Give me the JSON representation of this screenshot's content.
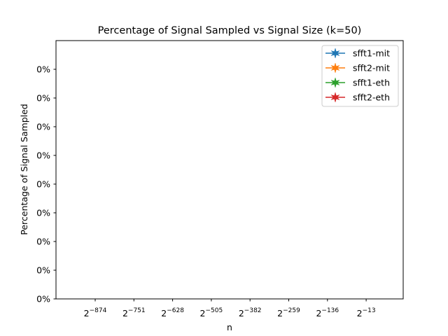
{
  "chart_data": {
    "type": "line",
    "title": "Percentage of Signal Sampled vs Signal Size (k=50)",
    "xlabel": "n",
    "ylabel": "Percentage of Signal Sampled",
    "x_scale": "log2",
    "x_ticks": [
      {
        "base": "2",
        "exp": "−874"
      },
      {
        "base": "2",
        "exp": "−751"
      },
      {
        "base": "2",
        "exp": "−628"
      },
      {
        "base": "2",
        "exp": "−505"
      },
      {
        "base": "2",
        "exp": "−382"
      },
      {
        "base": "2",
        "exp": "−259"
      },
      {
        "base": "2",
        "exp": "−136"
      },
      {
        "base": "2",
        "exp": "−13"
      }
    ],
    "y_ticks": [
      "0%",
      "0%",
      "0%",
      "0%",
      "0%",
      "0%",
      "0%",
      "0%",
      "0%"
    ],
    "legend_position": "top-right",
    "grid": false,
    "series": [
      {
        "name": "sfft1-mit",
        "color": "#1f77b4",
        "marker": "star",
        "x": [],
        "y": []
      },
      {
        "name": "sfft2-mit",
        "color": "#ff7f0e",
        "marker": "star",
        "x": [],
        "y": []
      },
      {
        "name": "sfft1-eth",
        "color": "#2ca02c",
        "marker": "star",
        "x": [],
        "y": []
      },
      {
        "name": "sfft2-eth",
        "color": "#d62728",
        "marker": "star",
        "x": [],
        "y": []
      }
    ]
  }
}
